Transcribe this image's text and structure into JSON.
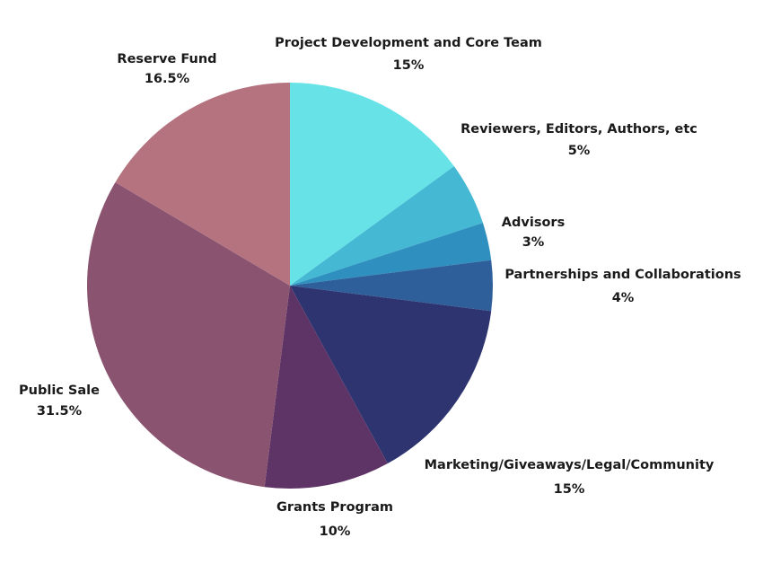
{
  "chart_data": {
    "type": "pie",
    "categories": [
      "Project Development and Core Team",
      "Reviewers, Editors, Authors, etc",
      "Advisors",
      "Partnerships and Collaborations",
      "Marketing/Giveaways/Legal/Community",
      "Grants Program",
      "Public Sale",
      "Reserve Fund"
    ],
    "values": [
      15,
      5,
      3,
      4,
      15,
      10,
      31.5,
      16.5
    ],
    "value_labels": [
      "15%",
      "5%",
      "3%",
      "4%",
      "15%",
      "10%",
      "31.5%",
      "16.5%"
    ],
    "colors": [
      "#67e3e8",
      "#45b8d4",
      "#2f8fbe",
      "#2e5f9a",
      "#2e3470",
      "#5e3466",
      "#8a5470",
      "#b57380"
    ]
  }
}
